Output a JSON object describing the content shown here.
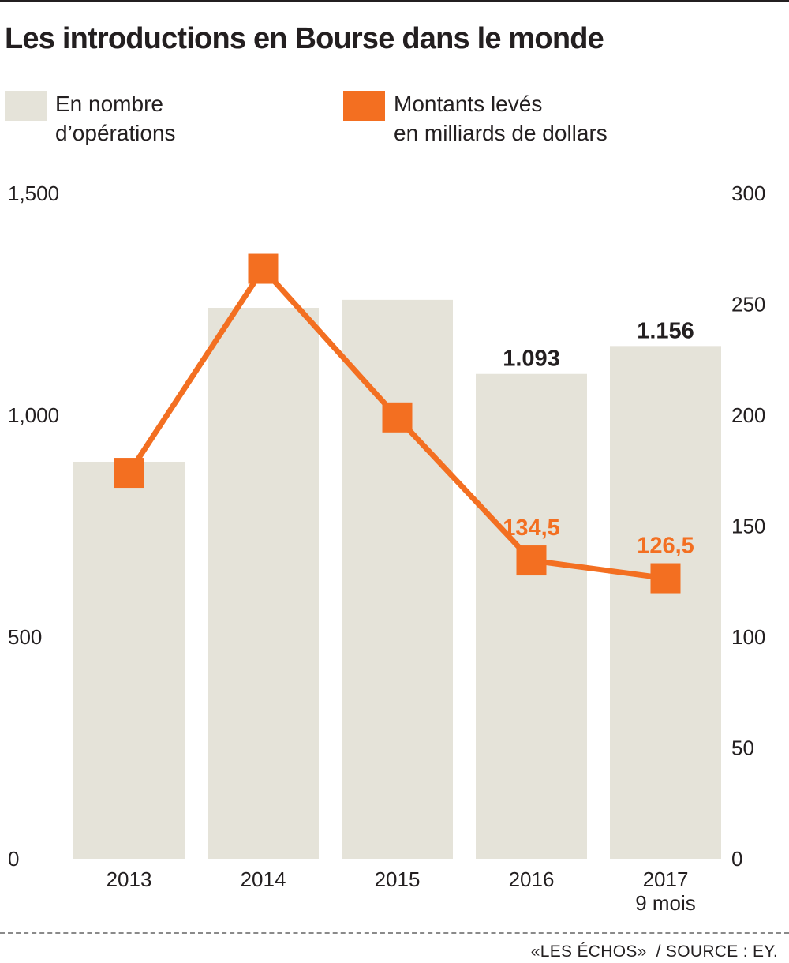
{
  "title": "Les introductions en Bourse dans le monde",
  "legend": {
    "bars": {
      "label": "En nombre\nd’opérations",
      "color": "#e5e3d9"
    },
    "line": {
      "label": "Montants levés\nen milliards de dollars",
      "color": "#f36f21"
    }
  },
  "chart_data": {
    "type": "bar",
    "title": "Les introductions en Bourse dans le monde",
    "categories": [
      "2013",
      "2014",
      "2015",
      "2016",
      "2017\n9 mois"
    ],
    "grid": false,
    "legend_position": "top",
    "y_left": {
      "lim": [
        0,
        1500
      ],
      "ticks": [
        "0",
        "500",
        "1,000",
        "1,500"
      ],
      "tick_values": [
        0,
        500,
        1000,
        1500
      ]
    },
    "y_right": {
      "lim": [
        0,
        300
      ],
      "ticks": [
        "0",
        "50",
        "100",
        "150",
        "200",
        "250",
        "300"
      ],
      "tick_values": [
        0,
        50,
        100,
        150,
        200,
        250,
        300
      ]
    },
    "series": [
      {
        "name": "En nombre d’opérations",
        "type": "bar",
        "axis": "left",
        "values": [
          895,
          1242,
          1260,
          1093,
          1156
        ],
        "data_labels": [
          "",
          "",
          "",
          "1.093",
          "1.156"
        ]
      },
      {
        "name": "Montants levés en milliards de dollars",
        "type": "line",
        "axis": "right",
        "values": [
          174,
          266,
          199,
          134.5,
          126.5
        ],
        "data_labels": [
          "",
          "",
          "",
          "134,5",
          "126,5"
        ]
      }
    ]
  },
  "footer": {
    "publisher": "«LES ÉCHOS»",
    "source": "/ SOURCE : EY."
  }
}
